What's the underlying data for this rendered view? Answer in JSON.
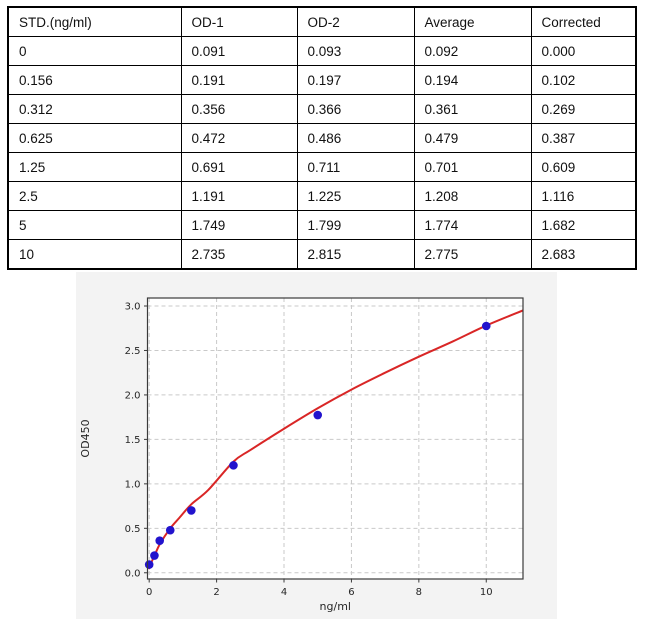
{
  "table": {
    "headers": [
      "STD.(ng/ml)",
      "OD-1",
      "OD-2",
      "Average",
      "Corrected"
    ],
    "rows": [
      [
        "0",
        "0.091",
        "0.093",
        "0.092",
        "0.000"
      ],
      [
        "0.156",
        "0.191",
        "0.197",
        "0.194",
        "0.102"
      ],
      [
        "0.312",
        "0.356",
        "0.366",
        "0.361",
        "0.269"
      ],
      [
        "0.625",
        "0.472",
        "0.486",
        "0.479",
        "0.387"
      ],
      [
        "1.25",
        "0.691",
        "0.711",
        "0.701",
        "0.609"
      ],
      [
        "2.5",
        "1.191",
        "1.225",
        "1.208",
        "1.116"
      ],
      [
        "5",
        "1.749",
        "1.799",
        "1.774",
        "1.682"
      ],
      [
        "10",
        "2.735",
        "2.815",
        "2.775",
        "2.683"
      ]
    ]
  },
  "chart_data": {
    "type": "scatter",
    "title": "",
    "xlabel": "ng/ml",
    "ylabel": "OD450",
    "xlim": [
      -0.05,
      11.09
    ],
    "ylim": [
      -0.07,
      3.09
    ],
    "grid": true,
    "legend": "none",
    "x_ticks": {
      "values": [
        0,
        2,
        4,
        6,
        8,
        10
      ],
      "labels": [
        "0",
        "2",
        "4",
        "6",
        "8",
        "10"
      ]
    },
    "y_ticks": {
      "values": [
        0,
        0.5,
        1,
        1.5,
        2,
        2.5,
        3
      ],
      "labels": [
        "0.0",
        "0.5",
        "1.0",
        "1.5",
        "2.0",
        "2.5",
        "3.0"
      ]
    },
    "series": [
      {
        "name": "fit-curve",
        "type": "line",
        "color": "#d92626",
        "width": 2,
        "points": [
          [
            0,
            0.05
          ],
          [
            0.08,
            0.13
          ],
          [
            0.156,
            0.19
          ],
          [
            0.312,
            0.32
          ],
          [
            0.625,
            0.5
          ],
          [
            0.9,
            0.62
          ],
          [
            1.25,
            0.77
          ],
          [
            1.75,
            0.93
          ],
          [
            2.5,
            1.25
          ],
          [
            3,
            1.38
          ],
          [
            4,
            1.62
          ],
          [
            5,
            1.85
          ],
          [
            6,
            2.06
          ],
          [
            7,
            2.25
          ],
          [
            8,
            2.43
          ],
          [
            9,
            2.6
          ],
          [
            10,
            2.78
          ],
          [
            11.09,
            2.95
          ]
        ]
      },
      {
        "name": "standard-points",
        "type": "scatter",
        "color": "#2213cd",
        "marker_radius": 4.3,
        "points": [
          [
            0,
            0.092
          ],
          [
            0.156,
            0.194
          ],
          [
            0.312,
            0.361
          ],
          [
            0.625,
            0.479
          ],
          [
            1.25,
            0.701
          ],
          [
            2.5,
            1.208
          ],
          [
            5,
            1.774
          ],
          [
            10,
            2.775
          ]
        ]
      }
    ],
    "colors": {
      "figure_bg": "#f3f3f3",
      "plot_bg": "#ffffff",
      "grid": "#c9c9c9",
      "spine": "#3a3a3a",
      "tick_text": "#262626"
    }
  }
}
